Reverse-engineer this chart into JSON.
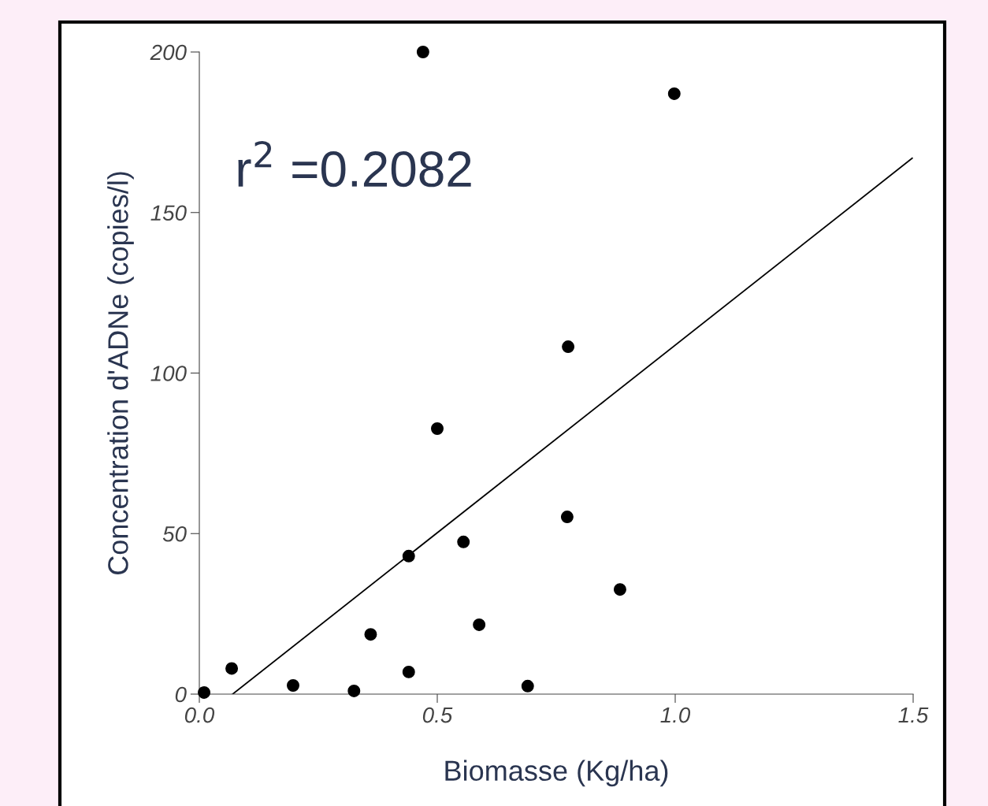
{
  "chart_data": {
    "type": "scatter",
    "xlabel": "Biomasse (Kg/ha)",
    "ylabel": "Concentration d'ADNe (copies/l)",
    "annotations": [
      "r$^{2}$ =0.2082"
    ],
    "xlim": [
      0,
      1.5
    ],
    "xticks": [
      {
        "value": 0,
        "label": "0.0"
      },
      {
        "value": 0.5,
        "label": "0.5"
      },
      {
        "value": 1,
        "label": "1.0"
      },
      {
        "value": 1.5,
        "label": "1.5"
      }
    ],
    "ylim": [
      0,
      200
    ],
    "yticks": [
      0,
      50,
      100,
      150,
      200
    ],
    "series": [
      {
        "color": "#000000",
        "marker": "circle",
        "x": [
          0.01,
          0.068,
          0.197,
          0.325,
          0.36,
          0.44,
          0.44,
          0.47,
          0.5,
          0.555,
          0.588,
          0.69,
          0.773,
          0.775,
          0.884,
          0.998
        ],
        "values": [
          0.5,
          8,
          2.7,
          1,
          18.6,
          6.9,
          43,
          200,
          82.7,
          47.4,
          21.6,
          2.5,
          55.2,
          108.2,
          32.6,
          187
        ]
      },
      {
        "type": "line",
        "color": "#000000",
        "marker": "none",
        "line_style": "solid",
        "x": [
          0.07,
          1.498
        ],
        "values": [
          0,
          166.9
        ]
      }
    ]
  }
}
